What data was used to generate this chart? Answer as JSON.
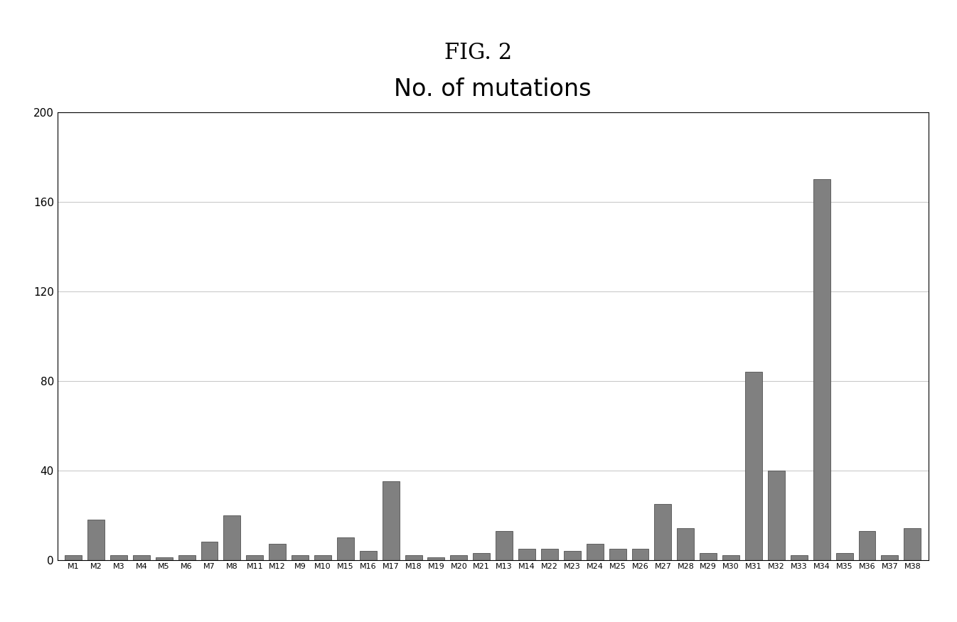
{
  "title": "No. of mutations",
  "fig_title": "FIG. 2",
  "categories": [
    "M1",
    "M2",
    "M3",
    "M4",
    "M5",
    "M6",
    "M7",
    "M8",
    "M11",
    "M12",
    "M9",
    "M10",
    "M15",
    "M16",
    "M17",
    "M18",
    "M19",
    "M20",
    "M21",
    "M13",
    "M14",
    "M22",
    "M23",
    "M24",
    "M25",
    "M26",
    "M27",
    "M28",
    "M29",
    "M30",
    "M31",
    "M32",
    "M33",
    "M34",
    "M35",
    "M36",
    "M37",
    "M38"
  ],
  "values": [
    2,
    18,
    2,
    2,
    1,
    2,
    8,
    20,
    2,
    7,
    2,
    2,
    10,
    4,
    35,
    2,
    1,
    2,
    3,
    13,
    5,
    5,
    4,
    7,
    5,
    5,
    25,
    14,
    3,
    2,
    84,
    40,
    2,
    170,
    3,
    13,
    2,
    14
  ],
  "bar_color": "#808080",
  "bar_edge_color": "#505050",
  "ylim": [
    0,
    200
  ],
  "yticks": [
    0,
    40,
    80,
    120,
    160,
    200
  ],
  "background_color": "#ffffff",
  "plot_bg_color": "#ffffff",
  "grid_color": "#bbbbbb",
  "chart_title_fontsize": 24,
  "fig_title_fontsize": 22,
  "ytick_fontsize": 11,
  "xtick_fontsize": 8
}
